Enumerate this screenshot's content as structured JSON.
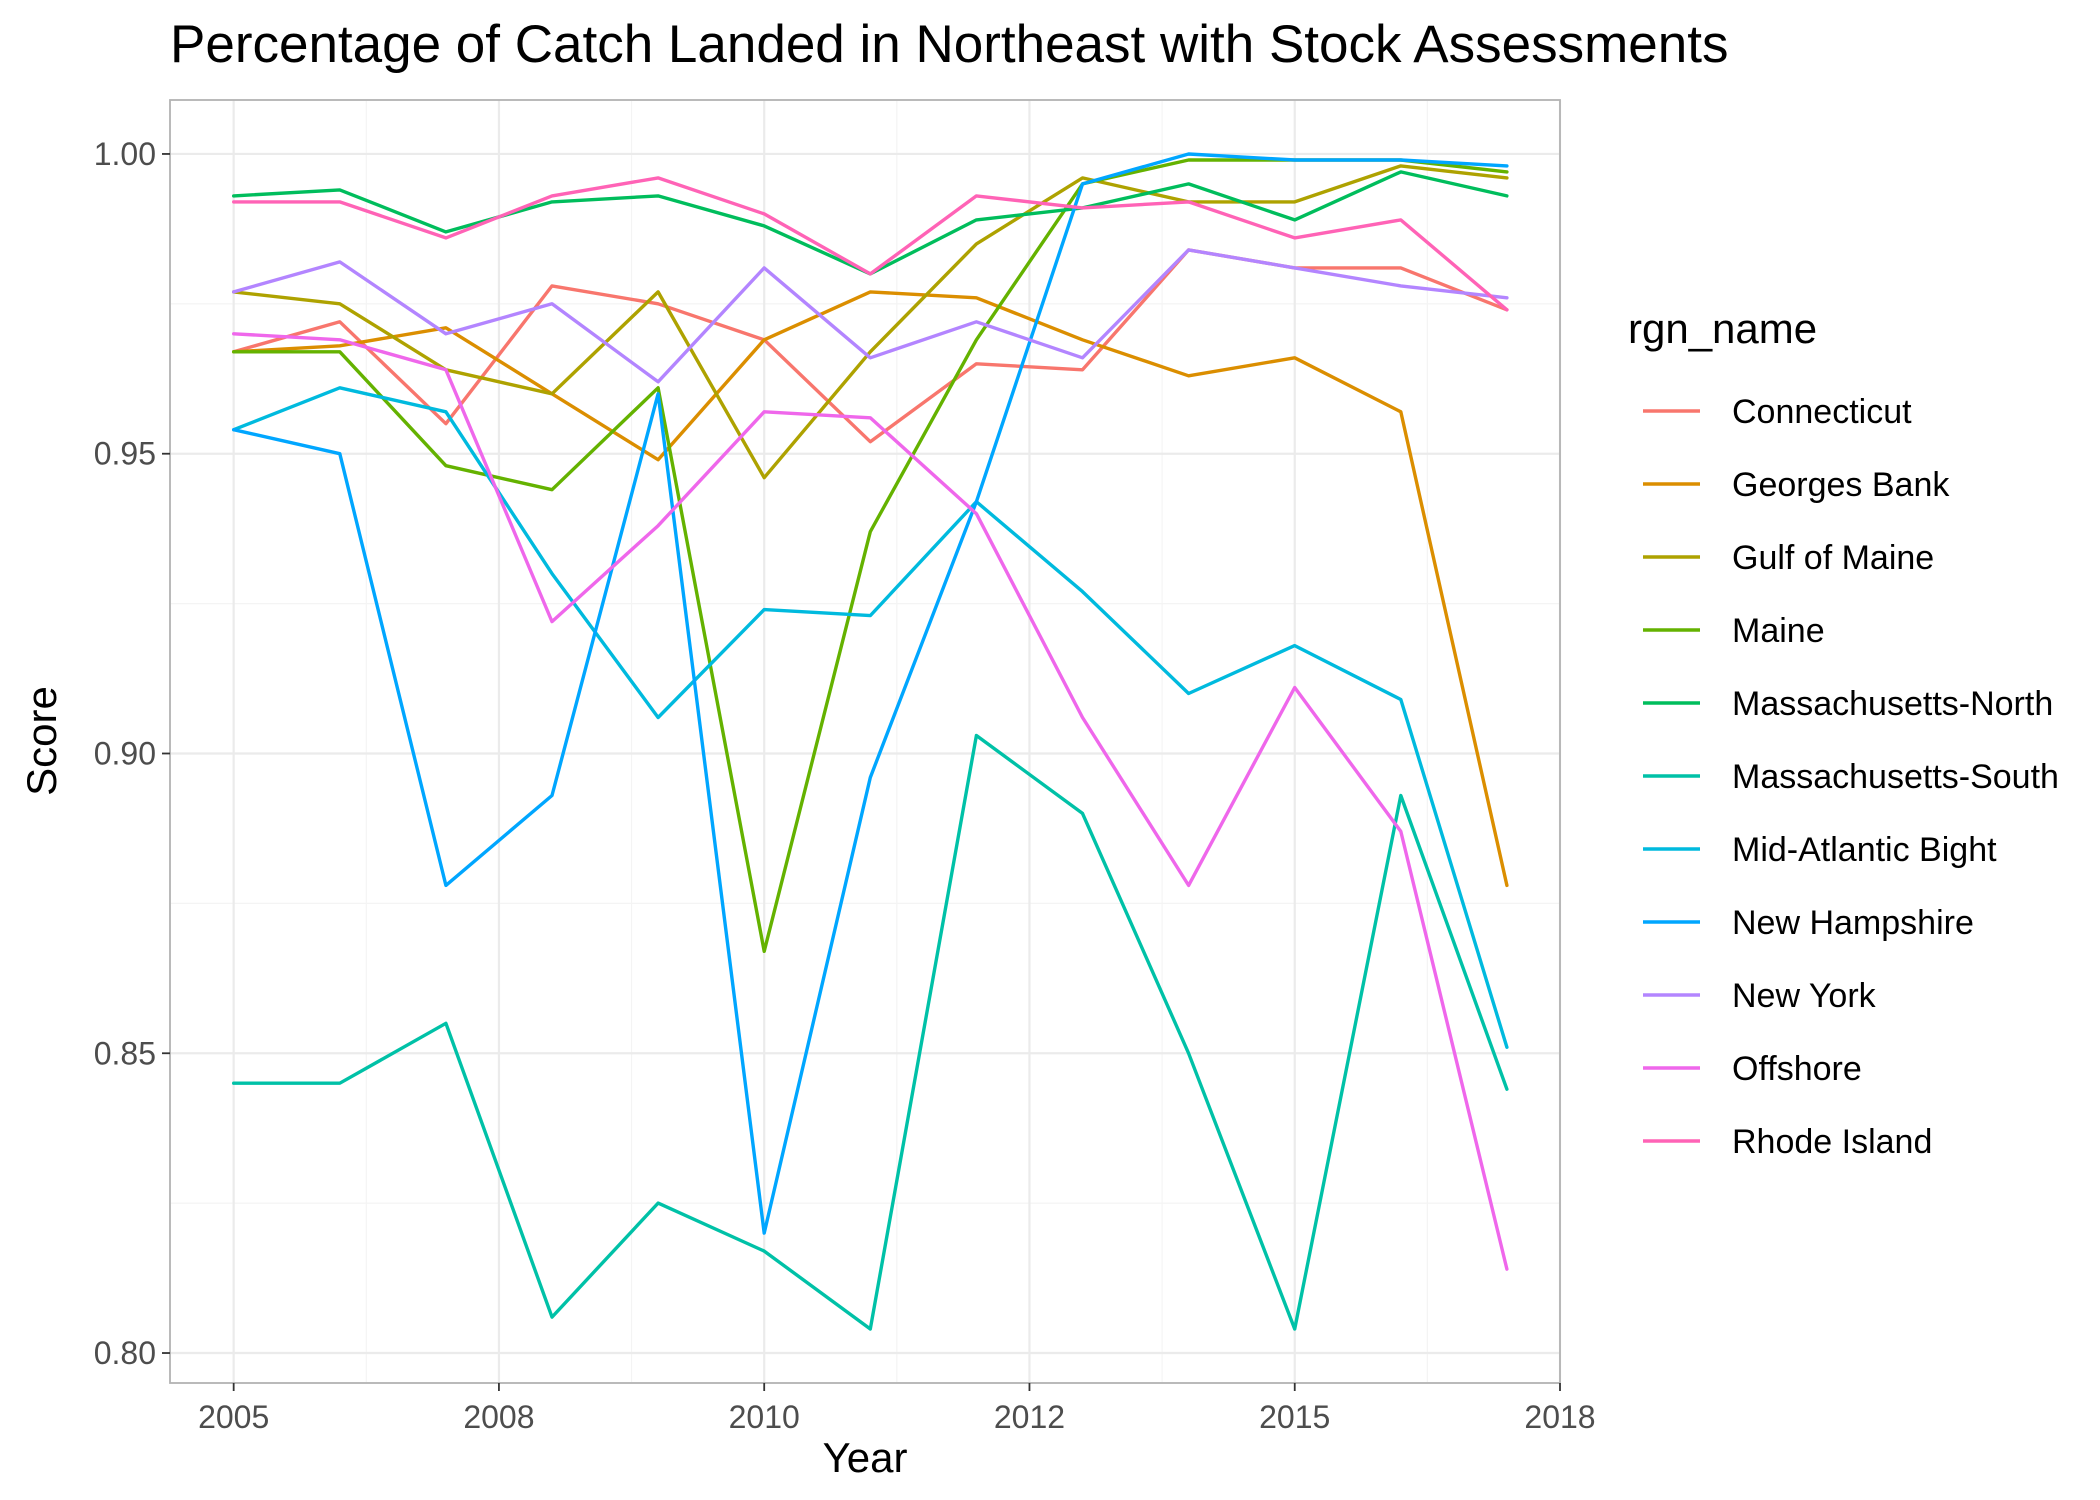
{
  "chart_data": {
    "type": "line",
    "title": "Percentage of Catch Landed in Northeast with Stock Assessments",
    "xlabel": "Year",
    "ylabel": "Score",
    "x": [
      2005,
      2006,
      2007,
      2008,
      2009,
      2010,
      2011,
      2012,
      2013,
      2014,
      2015,
      2016,
      2017
    ],
    "xlim": [
      2004.4,
      2017.5
    ],
    "ylim": [
      0.795,
      1.009
    ],
    "x_ticks": [
      2005,
      2007.5,
      2010,
      2012.5,
      2015,
      2017.5
    ],
    "x_tick_labels": [
      "2005",
      "2008",
      "2010",
      "2012",
      "2015",
      "2018"
    ],
    "x_minor_ticks": [
      2006.25,
      2008.75,
      2011.25,
      2013.75,
      2016.25
    ],
    "y_ticks": [
      0.8,
      0.85,
      0.9,
      0.95,
      1.0
    ],
    "y_tick_labels": [
      "0.80",
      "0.85",
      "0.90",
      "0.95",
      "1.00"
    ],
    "y_minor_ticks": [
      0.825,
      0.875,
      0.925,
      0.975
    ],
    "grid": true,
    "legend_title": "rgn_name",
    "legend_position": "right",
    "series": [
      {
        "name": "Connecticut",
        "color": "#F8766D",
        "values": [
          0.967,
          0.972,
          0.955,
          0.978,
          0.975,
          0.969,
          0.952,
          0.965,
          0.964,
          0.984,
          0.981,
          0.981,
          0.974
        ]
      },
      {
        "name": "Georges Bank",
        "color": "#DB8E00",
        "values": [
          0.967,
          0.968,
          0.971,
          0.96,
          0.949,
          0.969,
          0.977,
          0.976,
          0.969,
          0.963,
          0.966,
          0.957,
          0.878
        ]
      },
      {
        "name": "Gulf of Maine",
        "color": "#AEA200",
        "values": [
          0.977,
          0.975,
          0.964,
          0.96,
          0.977,
          0.946,
          0.967,
          0.985,
          0.996,
          0.992,
          0.992,
          0.998,
          0.996
        ]
      },
      {
        "name": "Maine",
        "color": "#64B200",
        "values": [
          0.967,
          0.967,
          0.948,
          0.944,
          0.961,
          0.867,
          0.937,
          0.969,
          0.995,
          0.999,
          0.999,
          0.999,
          0.997
        ]
      },
      {
        "name": "Massachusetts-North",
        "color": "#00BD5C",
        "values": [
          0.993,
          0.994,
          0.987,
          0.992,
          0.993,
          0.988,
          0.98,
          0.989,
          0.991,
          0.995,
          0.989,
          0.997,
          0.993
        ]
      },
      {
        "name": "Massachusetts-South",
        "color": "#00C1A7",
        "values": [
          0.845,
          0.845,
          0.855,
          0.806,
          0.825,
          0.817,
          0.804,
          0.903,
          0.89,
          0.85,
          0.804,
          0.893,
          0.844
        ]
      },
      {
        "name": "Mid-Atlantic Bight",
        "color": "#00BADE",
        "values": [
          0.954,
          0.961,
          0.957,
          0.93,
          0.906,
          0.924,
          0.923,
          0.942,
          0.927,
          0.91,
          0.918,
          0.909,
          0.851
        ]
      },
      {
        "name": "New Hampshire",
        "color": "#00A6FF",
        "values": [
          0.954,
          0.95,
          0.878,
          0.893,
          0.96,
          0.82,
          0.896,
          0.942,
          0.995,
          1.0,
          0.999,
          0.999,
          0.998
        ]
      },
      {
        "name": "New York",
        "color": "#B385FF",
        "values": [
          0.977,
          0.982,
          0.97,
          0.975,
          0.962,
          0.981,
          0.966,
          0.972,
          0.966,
          0.984,
          0.981,
          0.978,
          0.976
        ]
      },
      {
        "name": "Offshore",
        "color": "#EF67EB",
        "values": [
          0.97,
          0.969,
          0.964,
          0.922,
          0.938,
          0.957,
          0.956,
          0.94,
          0.906,
          0.878,
          0.911,
          0.887,
          0.814
        ]
      },
      {
        "name": "Rhode Island",
        "color": "#FF63B6",
        "values": [
          0.992,
          0.992,
          0.986,
          0.993,
          0.996,
          0.99,
          0.98,
          0.993,
          0.991,
          0.992,
          0.986,
          0.989,
          0.974
        ]
      }
    ]
  }
}
